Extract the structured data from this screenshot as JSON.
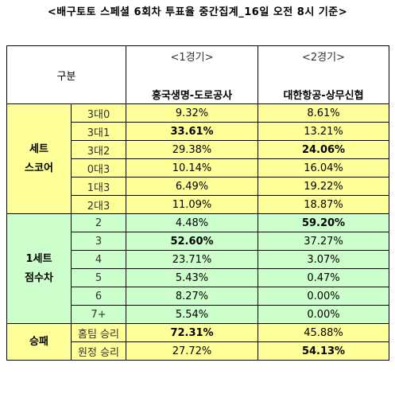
{
  "title": "<배구토토 스페셜 6회차 투표율 중간집계_16일 오전 8시 기준>",
  "header": {
    "group_label": "구분",
    "games": [
      {
        "number": "<1경기>",
        "match": "흥국생명-도로공사"
      },
      {
        "number": "<2경기>",
        "match": "대한항공-상무신협"
      }
    ]
  },
  "sections": [
    {
      "title_lines": [
        "세트",
        "스코어"
      ],
      "color": "#ffff99",
      "rows": [
        {
          "label": "3대0",
          "g1": "9.32%",
          "g2": "8.61%"
        },
        {
          "label": "3대1",
          "g1": "33.61%",
          "g2": "13.21%"
        },
        {
          "label": "3대2",
          "g1": "29.38%",
          "g2": "24.06%"
        },
        {
          "label": "0대3",
          "g1": "10.14%",
          "g2": "16.04%"
        },
        {
          "label": "1대3",
          "g1": "6.49%",
          "g2": "19.22%"
        },
        {
          "label": "2대3",
          "g1": "11.09%",
          "g2": "18.87%"
        }
      ]
    },
    {
      "title_lines": [
        "1세트",
        "점수차"
      ],
      "color": "#ccffcc",
      "rows": [
        {
          "label": "2",
          "g1": "4.48%",
          "g2": "59.20%"
        },
        {
          "label": "3",
          "g1": "52.60%",
          "g2": "37.27%"
        },
        {
          "label": "4",
          "g1": "23.71%",
          "g2": "3.07%"
        },
        {
          "label": "5",
          "g1": "5.43%",
          "g2": "0.47%"
        },
        {
          "label": "6",
          "g1": "8.27%",
          "g2": "0.00%"
        },
        {
          "label": "7+",
          "g1": "5.54%",
          "g2": "0.00%"
        }
      ]
    },
    {
      "title_lines": [
        "승패"
      ],
      "color": "#ffff99",
      "rows": [
        {
          "label": "홈팀 승리",
          "g1": "72.31%",
          "g2": "45.88%"
        },
        {
          "label": "원정 승리",
          "g1": "27.72%",
          "g2": "54.13%"
        }
      ]
    }
  ]
}
